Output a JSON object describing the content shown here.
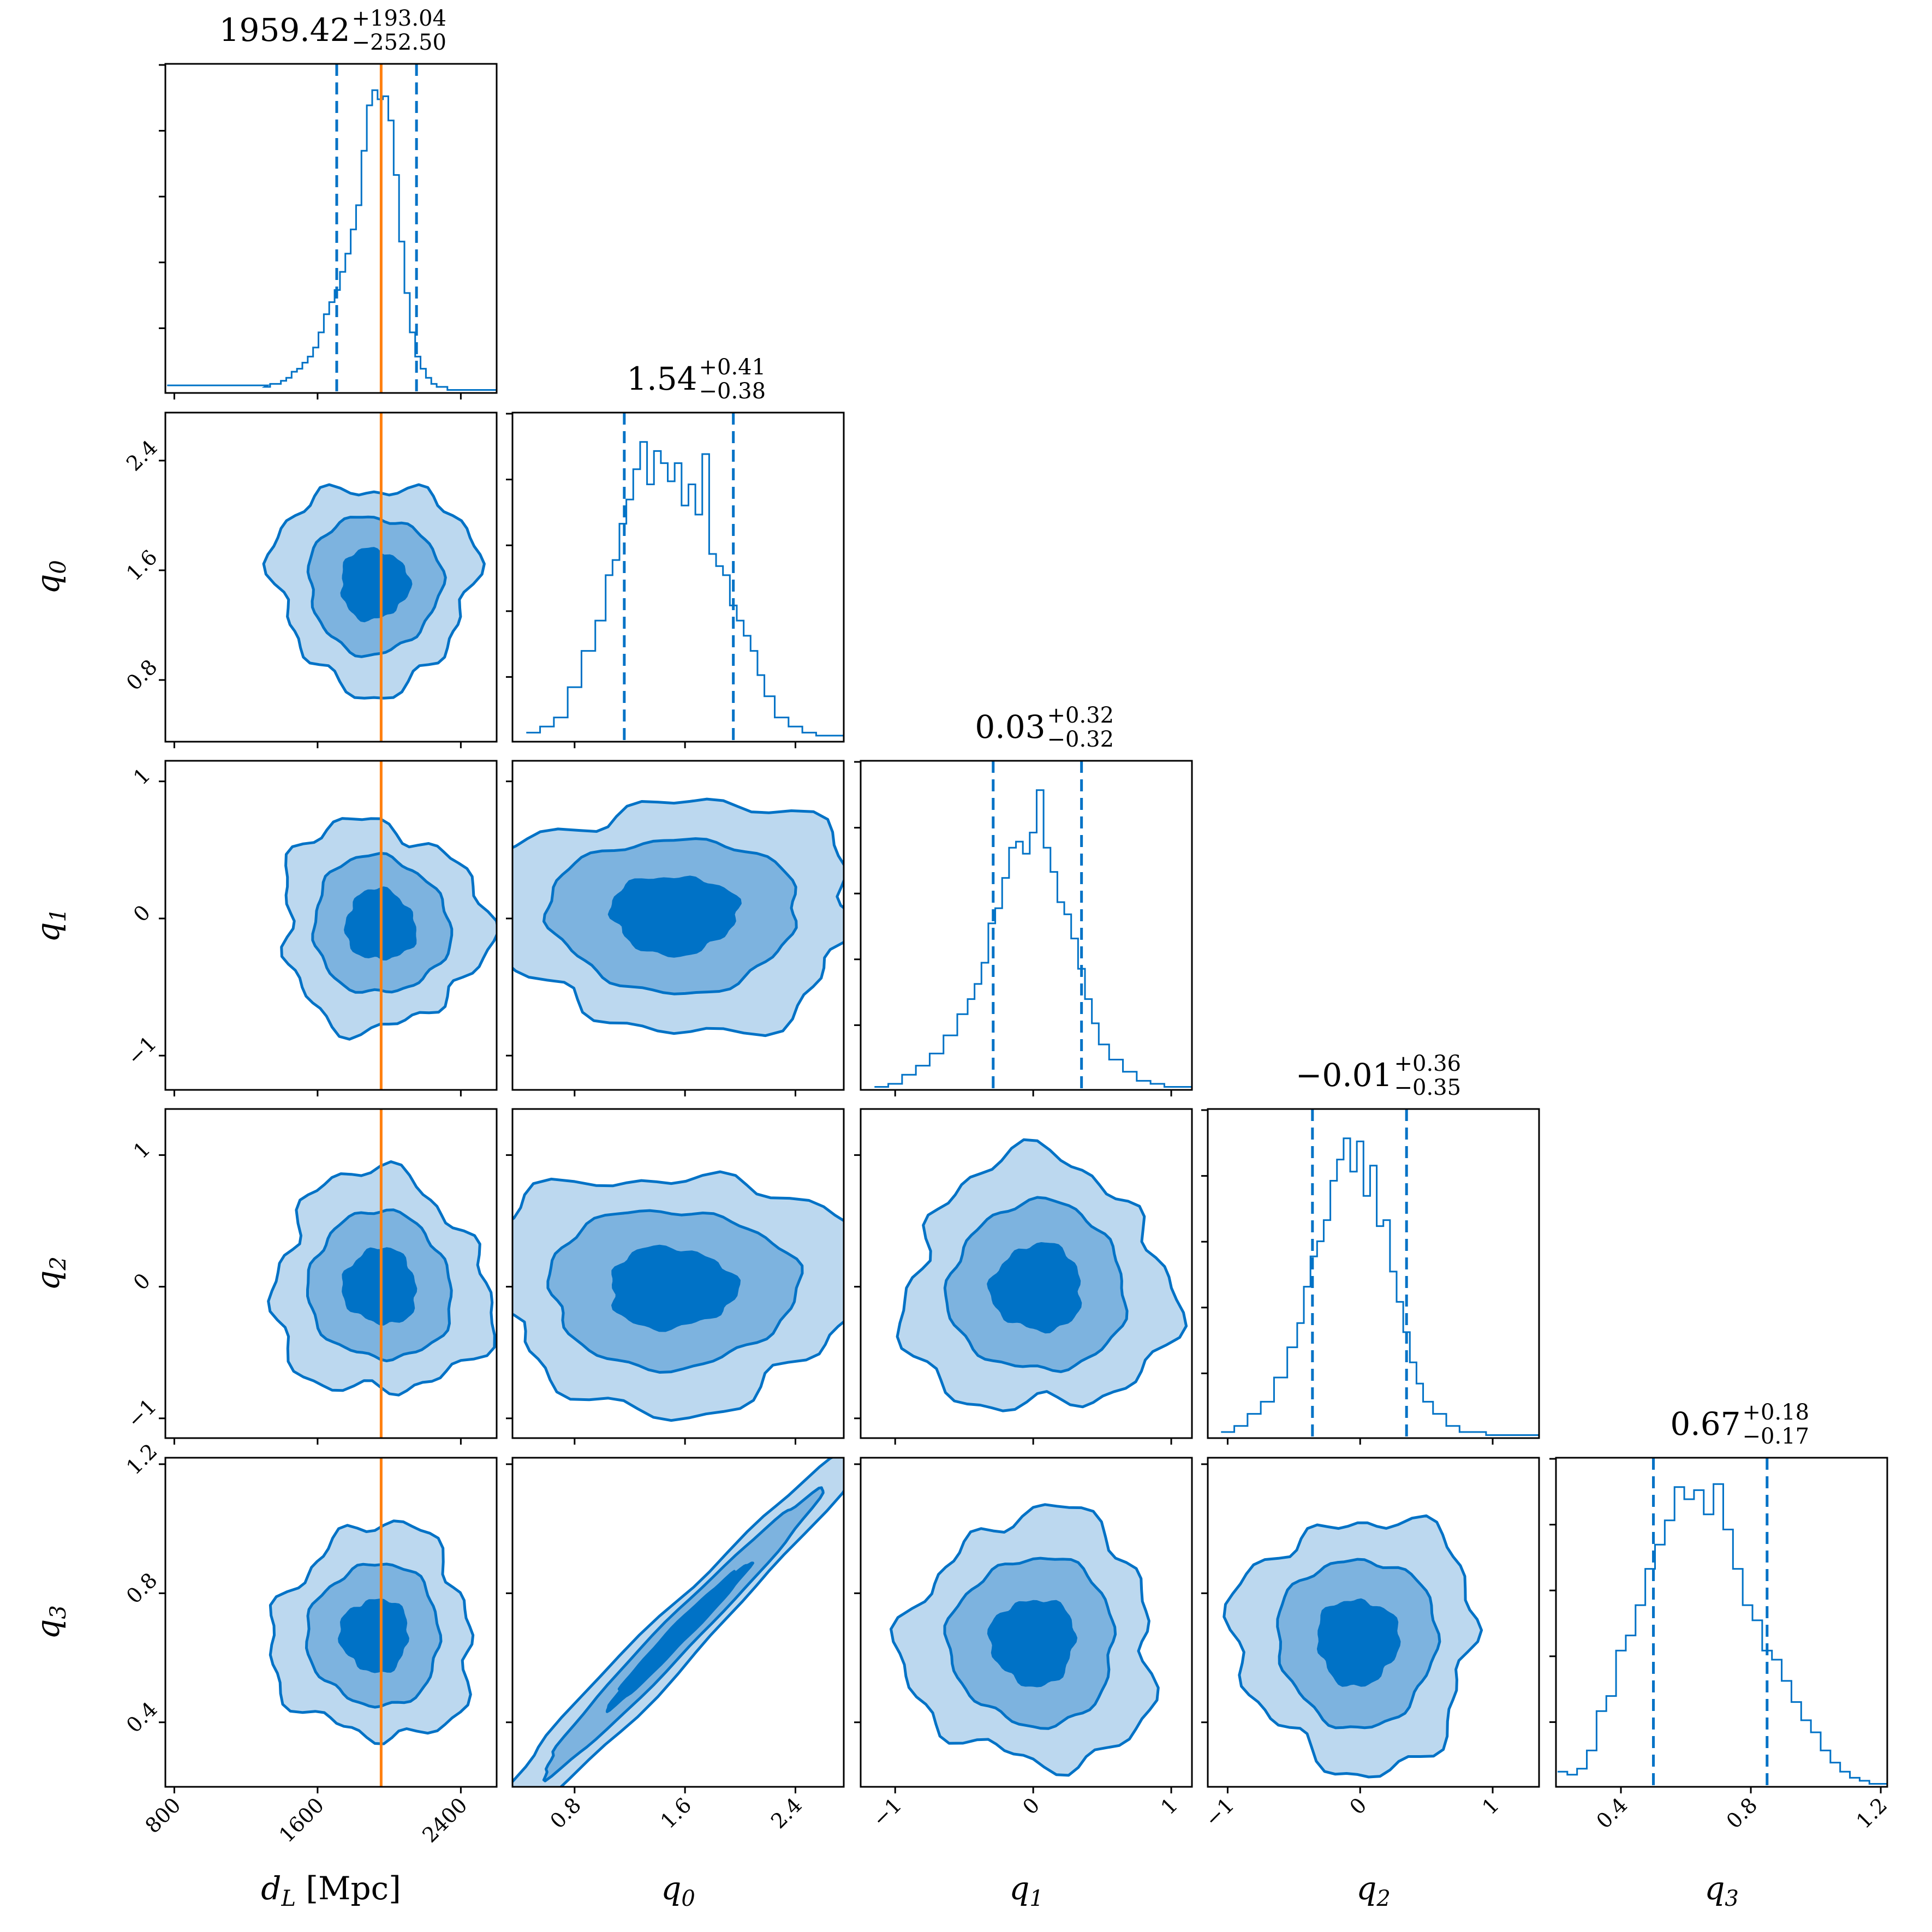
{
  "colors": {
    "contour_line": "#0072c6",
    "fill_outer": "#bcd8ef",
    "fill_mid": "#7db3df",
    "fill_inner": "#0072c6",
    "truth_line": "#ff7f0e",
    "frame": "#000000"
  },
  "chart_data": {
    "type": "corner",
    "parameters": [
      {
        "key": "dL",
        "label": "d",
        "subscript": "L",
        "suffix": " [Mpc]",
        "range": [
          750,
          2600
        ],
        "ticks": [
          800,
          1600,
          2400
        ],
        "tick_labels": [
          "800",
          "1600",
          "2400"
        ],
        "median": 1959.42,
        "err_plus": 193.04,
        "err_minus": 252.5,
        "title_value": "1959.42",
        "title_plus": "+193.04",
        "title_minus": "−252.50",
        "truth": 1955
      },
      {
        "key": "q0",
        "label": "q",
        "subscript": "0",
        "suffix": "",
        "range": [
          0.35,
          2.75
        ],
        "ticks": [
          0.8,
          1.6,
          2.4
        ],
        "tick_labels": [
          "0.8",
          "1.6",
          "2.4"
        ],
        "median": 1.54,
        "err_plus": 0.41,
        "err_minus": 0.38,
        "title_value": "1.54",
        "title_plus": "+0.41",
        "title_minus": "−0.38"
      },
      {
        "key": "q1",
        "label": "q",
        "subscript": "1",
        "suffix": "",
        "range": [
          -1.25,
          1.15
        ],
        "ticks": [
          -1,
          0,
          1
        ],
        "tick_labels": [
          "−1",
          "0",
          "1"
        ],
        "median": 0.03,
        "err_plus": 0.32,
        "err_minus": 0.32,
        "title_value": "0.03",
        "title_plus": "+0.32",
        "title_minus": "−0.32"
      },
      {
        "key": "q2",
        "label": "q",
        "subscript": "2",
        "suffix": "",
        "range": [
          -1.15,
          1.35
        ],
        "ticks": [
          -1,
          0,
          1
        ],
        "tick_labels": [
          "−1",
          "0",
          "1"
        ],
        "median": -0.01,
        "err_plus": 0.36,
        "err_minus": 0.35,
        "title_value": "−0.01",
        "title_plus": "+0.36",
        "title_minus": "−0.35"
      },
      {
        "key": "q3",
        "label": "q",
        "subscript": "3",
        "suffix": "",
        "range": [
          0.2,
          1.22
        ],
        "ticks": [
          0.4,
          0.8,
          1.2
        ],
        "tick_labels": [
          "0.4",
          "0.8",
          "1.2"
        ],
        "median": 0.67,
        "err_plus": 0.18,
        "err_minus": 0.17,
        "title_value": "0.67",
        "title_plus": "+0.18",
        "title_minus": "−0.17"
      }
    ],
    "histograms": [
      {
        "x": [
          1320,
          1350,
          1380,
          1410,
          1440,
          1470,
          1500,
          1530,
          1560,
          1590,
          1620,
          1650,
          1680,
          1710,
          1740,
          1770,
          1800,
          1830,
          1860,
          1890,
          1920,
          1950,
          1980,
          2010,
          2040,
          2070,
          2100,
          2130,
          2160,
          2190,
          2220,
          2250,
          2280,
          2310,
          2340,
          2370,
          2400
        ],
        "y": [
          0.02,
          0.03,
          0.03,
          0.04,
          0.05,
          0.07,
          0.08,
          0.1,
          0.12,
          0.15,
          0.2,
          0.26,
          0.3,
          0.34,
          0.4,
          0.46,
          0.54,
          0.62,
          0.8,
          0.95,
          1.0,
          0.97,
          0.98,
          0.9,
          0.72,
          0.5,
          0.33,
          0.2,
          0.12,
          0.08,
          0.05,
          0.03,
          0.02,
          0.02,
          0.01,
          0.01,
          0.01
        ],
        "tail": {
          "from": 760,
          "to": 1320,
          "level": 0.025
        }
      },
      {
        "x": [
          0.5,
          0.6,
          0.7,
          0.8,
          0.9,
          1.0,
          1.05,
          1.1,
          1.15,
          1.2,
          1.25,
          1.3,
          1.35,
          1.4,
          1.45,
          1.5,
          1.55,
          1.6,
          1.65,
          1.7,
          1.75,
          1.8,
          1.85,
          1.9,
          1.95,
          2.0,
          2.05,
          2.1,
          2.15,
          2.2,
          2.3,
          2.4,
          2.5,
          2.6
        ],
        "y": [
          0.03,
          0.05,
          0.08,
          0.18,
          0.3,
          0.4,
          0.55,
          0.6,
          0.72,
          0.8,
          0.9,
          0.99,
          0.85,
          0.96,
          0.92,
          0.86,
          0.92,
          0.78,
          0.85,
          0.75,
          0.95,
          0.62,
          0.58,
          0.55,
          0.45,
          0.4,
          0.35,
          0.3,
          0.22,
          0.15,
          0.08,
          0.05,
          0.03,
          0.02
        ]
      },
      {
        "x": [
          -1.1,
          -1.0,
          -0.9,
          -0.8,
          -0.7,
          -0.6,
          -0.5,
          -0.45,
          -0.4,
          -0.35,
          -0.3,
          -0.25,
          -0.2,
          -0.15,
          -0.1,
          -0.05,
          0.0,
          0.05,
          0.1,
          0.15,
          0.2,
          0.25,
          0.3,
          0.35,
          0.4,
          0.45,
          0.5,
          0.6,
          0.7,
          0.8,
          0.9,
          1.0,
          1.1
        ],
        "y": [
          0.01,
          0.02,
          0.05,
          0.08,
          0.12,
          0.18,
          0.25,
          0.3,
          0.35,
          0.42,
          0.55,
          0.6,
          0.7,
          0.8,
          0.82,
          0.78,
          0.85,
          0.99,
          0.8,
          0.72,
          0.62,
          0.58,
          0.5,
          0.4,
          0.3,
          0.22,
          0.15,
          0.1,
          0.06,
          0.03,
          0.02,
          0.01,
          0.01
        ]
      },
      {
        "x": [
          -1.0,
          -0.9,
          -0.8,
          -0.7,
          -0.6,
          -0.5,
          -0.45,
          -0.4,
          -0.35,
          -0.3,
          -0.25,
          -0.2,
          -0.15,
          -0.1,
          -0.05,
          0.0,
          0.05,
          0.1,
          0.15,
          0.2,
          0.25,
          0.3,
          0.35,
          0.4,
          0.45,
          0.5,
          0.6,
          0.7,
          0.8,
          0.9,
          1.0,
          1.1,
          1.2,
          1.3
        ],
        "y": [
          0.02,
          0.04,
          0.08,
          0.12,
          0.2,
          0.3,
          0.38,
          0.5,
          0.6,
          0.65,
          0.72,
          0.85,
          0.92,
          0.99,
          0.88,
          0.98,
          0.8,
          0.9,
          0.7,
          0.72,
          0.55,
          0.45,
          0.35,
          0.25,
          0.18,
          0.12,
          0.08,
          0.04,
          0.02,
          0.02,
          0.01,
          0.01,
          0.01,
          0.01
        ]
      },
      {
        "x": [
          0.22,
          0.25,
          0.28,
          0.31,
          0.34,
          0.37,
          0.4,
          0.43,
          0.46,
          0.49,
          0.52,
          0.55,
          0.58,
          0.61,
          0.64,
          0.67,
          0.7,
          0.73,
          0.76,
          0.79,
          0.82,
          0.85,
          0.88,
          0.91,
          0.94,
          0.97,
          1.0,
          1.03,
          1.06,
          1.09,
          1.12,
          1.15,
          1.18
        ],
        "y": [
          0.05,
          0.04,
          0.06,
          0.12,
          0.25,
          0.3,
          0.45,
          0.5,
          0.6,
          0.72,
          0.8,
          0.88,
          0.99,
          0.95,
          0.98,
          0.9,
          1.0,
          0.85,
          0.72,
          0.6,
          0.55,
          0.45,
          0.42,
          0.35,
          0.28,
          0.22,
          0.18,
          0.12,
          0.08,
          0.05,
          0.03,
          0.02,
          0.01
        ]
      }
    ],
    "pairs": [
      {
        "x": 0,
        "y": 1,
        "center": [
          1915,
          1.5
        ],
        "sigma": [
          185,
          0.25
        ],
        "rho": 0.0
      },
      {
        "x": 0,
        "y": 2,
        "center": [
          1950,
          -0.05
        ],
        "sigma": [
          190,
          0.25
        ],
        "rho": -0.05
      },
      {
        "x": 0,
        "y": 3,
        "center": [
          1950,
          0.0
        ],
        "sigma": [
          200,
          0.28
        ],
        "rho": -0.05
      },
      {
        "x": 0,
        "y": 4,
        "center": [
          1920,
          0.67
        ],
        "sigma": [
          185,
          0.11
        ],
        "rho": 0.0
      },
      {
        "x": 1,
        "y": 2,
        "center": [
          1.52,
          0.03
        ],
        "sigma": [
          0.45,
          0.28
        ],
        "rho": 0.0
      },
      {
        "x": 1,
        "y": 3,
        "center": [
          1.5,
          -0.01
        ],
        "sigma": [
          0.45,
          0.3
        ],
        "rho": 0.0
      },
      {
        "x": 1,
        "y": 4,
        "center": [
          1.55,
          0.67
        ],
        "sigma": [
          0.5,
          0.22
        ],
        "rho": 0.985
      },
      {
        "x": 2,
        "y": 3,
        "center": [
          0.03,
          -0.01
        ],
        "sigma": [
          0.32,
          0.32
        ],
        "rho": 0.0
      },
      {
        "x": 2,
        "y": 4,
        "center": [
          0.0,
          0.65
        ],
        "sigma": [
          0.3,
          0.13
        ],
        "rho": 0.0
      },
      {
        "x": 3,
        "y": 4,
        "center": [
          -0.02,
          0.65
        ],
        "sigma": [
          0.3,
          0.13
        ],
        "rho": 0.0
      }
    ],
    "contour_levels_sigma": [
      1,
      2,
      3
    ],
    "truth_parameter": 0,
    "grid": false
  }
}
